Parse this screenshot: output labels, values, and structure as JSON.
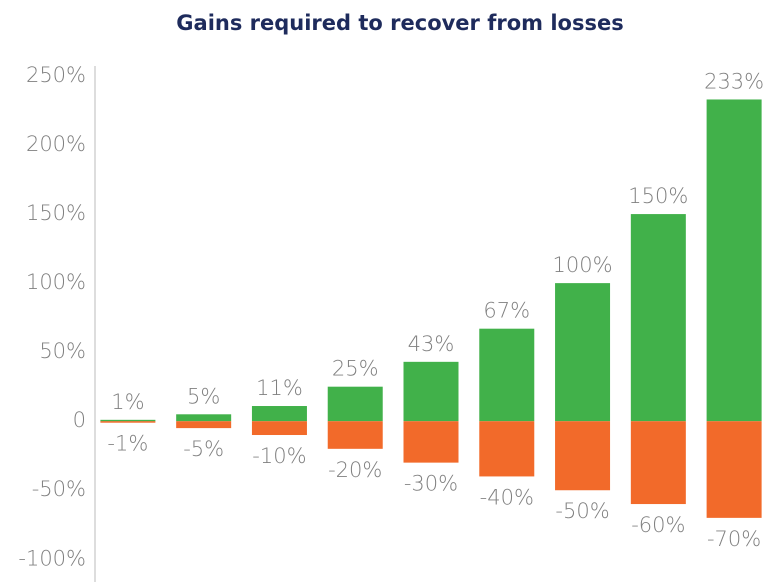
{
  "chart_data": {
    "type": "bar",
    "title": "Gains required to recover from losses",
    "series": [
      {
        "color": "#41b14a",
        "values": [
          1,
          5,
          11,
          25,
          43,
          67,
          100,
          150,
          233
        ],
        "value_labels": [
          "1%",
          "5%",
          "11%",
          "25%",
          "43%",
          "67%",
          "100%",
          "150%",
          "233%"
        ]
      },
      {
        "color": "#f26a2a",
        "values": [
          -1,
          -5,
          -10,
          -20,
          -30,
          -40,
          -50,
          -60,
          -70
        ],
        "value_labels": [
          "-1%",
          "-5%",
          "-10%",
          "-20%",
          "-30%",
          "-40%",
          "-50%",
          "-60%",
          "-70%"
        ]
      }
    ],
    "ylim": [
      -115,
      250
    ],
    "yticks": [
      {
        "value": -100,
        "label": "-100%"
      },
      {
        "value": -50,
        "label": "-50%"
      },
      0,
      {
        "value": 50,
        "label": "50%"
      },
      {
        "value": 100,
        "label": "100%"
      },
      {
        "value": 150,
        "label": "150%"
      },
      {
        "value": 200,
        "label": "200%"
      },
      {
        "value": 250,
        "label": "250%"
      }
    ]
  }
}
